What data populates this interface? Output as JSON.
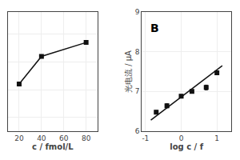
{
  "chart_data": [
    {
      "type": "line",
      "x": [
        20,
        40,
        80
      ],
      "values": [
        0.72,
        0.82,
        0.87
      ],
      "xlabel": "c / fmol/L",
      "xlim": [
        10,
        90
      ],
      "xticks": [
        20,
        40,
        60,
        80
      ],
      "ylim": [
        0.55,
        0.98
      ],
      "yticks": [
        0.6,
        0.7,
        0.8,
        0.9
      ],
      "tick_labels": "x",
      "marker": "square",
      "color": "#111111"
    },
    {
      "type": "scatter",
      "xlabel": "log c / f",
      "ylabel": "光电流 / μA",
      "annotations": [
        "B"
      ],
      "xlim": [
        -1.1,
        1.4
      ],
      "xticks": [
        -1,
        0,
        1
      ],
      "ylim": [
        6,
        9
      ],
      "yticks": [
        6,
        7,
        8,
        9
      ],
      "color": "#111111",
      "series": [
        {
          "type": "scatter",
          "marker": "square",
          "x": [
            -0.7,
            -0.4,
            0.0,
            0.3,
            0.7,
            1.0
          ],
          "values": [
            6.48,
            6.64,
            6.88,
            7.0,
            7.1,
            7.47
          ],
          "yerr": [
            0.04,
            0.05,
            0.04,
            0.04,
            0.06,
            0.05
          ]
        },
        {
          "type": "line",
          "x": [
            -0.85,
            1.15
          ],
          "values": [
            6.28,
            7.65
          ]
        }
      ]
    }
  ]
}
